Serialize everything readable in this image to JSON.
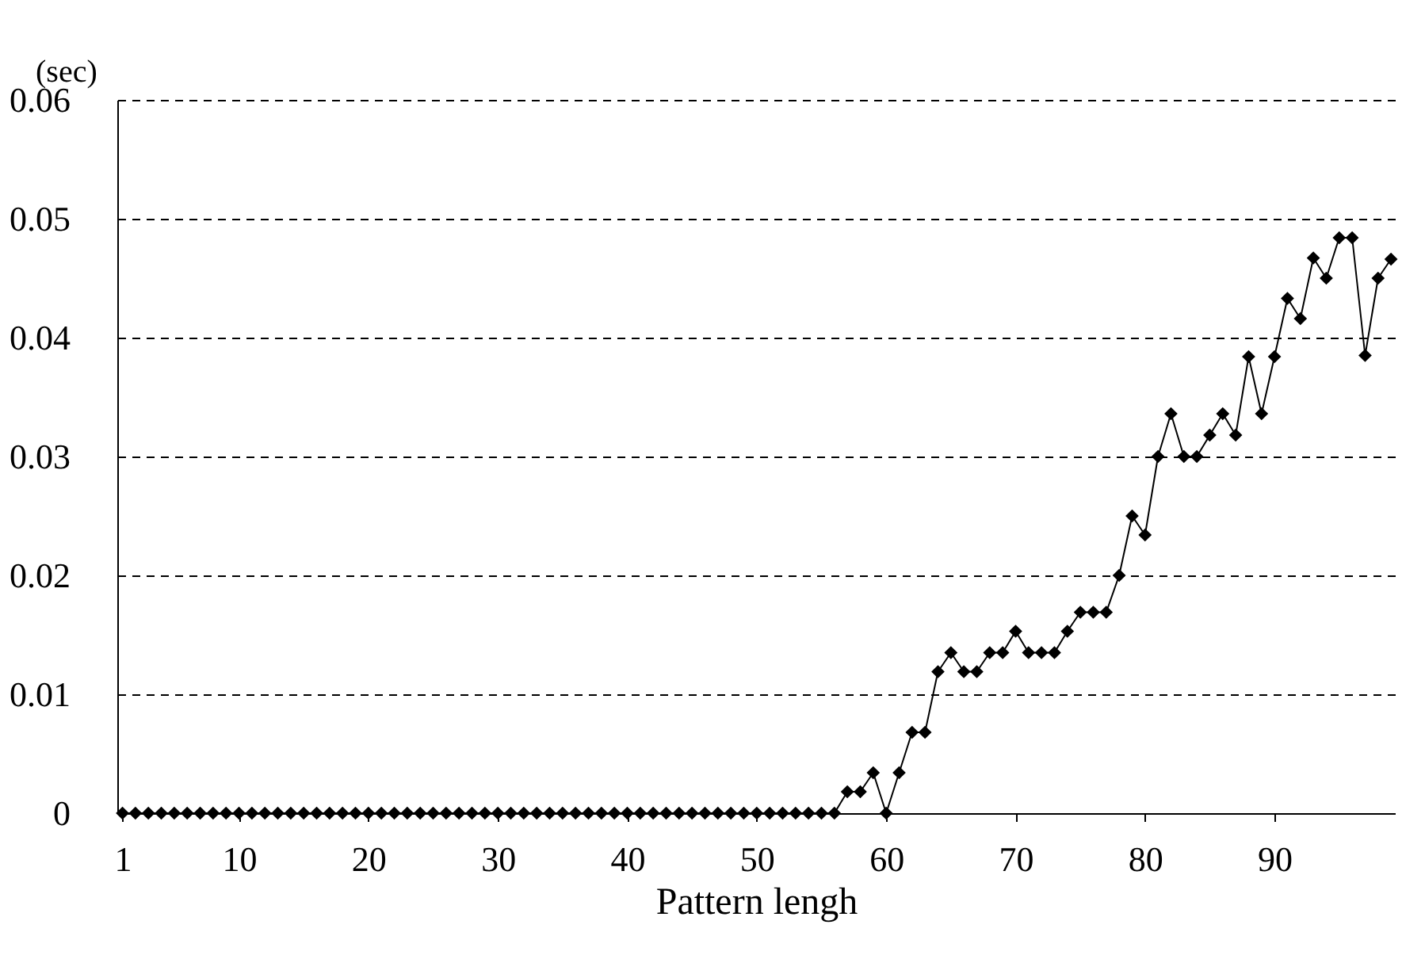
{
  "chart_data": {
    "type": "line",
    "xlabel": "Pattern lengh",
    "ylabel": "(sec)",
    "x": [
      1,
      2,
      3,
      4,
      5,
      6,
      7,
      8,
      9,
      10,
      11,
      12,
      13,
      14,
      15,
      16,
      17,
      18,
      19,
      20,
      21,
      22,
      23,
      24,
      25,
      26,
      27,
      28,
      29,
      30,
      31,
      32,
      33,
      34,
      35,
      36,
      37,
      38,
      39,
      40,
      41,
      42,
      43,
      44,
      45,
      46,
      47,
      48,
      49,
      50,
      51,
      52,
      53,
      54,
      55,
      56,
      57,
      58,
      59,
      60,
      61,
      62,
      63,
      64,
      65,
      66,
      67,
      68,
      69,
      70,
      71,
      72,
      73,
      74,
      75,
      76,
      77,
      78,
      79,
      80,
      81,
      82,
      83,
      84,
      85,
      86,
      87,
      88,
      89,
      90,
      91,
      92,
      93,
      94,
      95,
      96,
      97,
      98,
      99
    ],
    "series": [
      {
        "color": "#000000",
        "values": [
          0,
          0,
          0,
          0,
          0,
          0,
          0,
          0,
          0,
          0,
          0,
          0,
          0,
          0,
          0,
          0,
          0,
          0,
          0,
          0,
          0,
          0,
          0,
          0,
          0,
          0,
          0,
          0,
          0,
          0,
          0,
          0,
          0,
          0,
          0,
          0,
          0,
          0,
          0,
          0,
          0,
          0,
          0,
          0,
          0,
          0,
          0,
          0,
          0,
          0,
          0,
          0,
          0,
          0,
          0,
          0,
          0.0018,
          0.0018,
          0.0034,
          0,
          0.0034,
          0.0068,
          0.0068,
          0.0119,
          0.0135,
          0.0119,
          0.0119,
          0.0135,
          0.0135,
          0.0153,
          0.0135,
          0.0135,
          0.0135,
          0.0153,
          0.0169,
          0.0169,
          0.0169,
          0.02,
          0.025,
          0.0234,
          0.03,
          0.0336,
          0.03,
          0.03,
          0.0318,
          0.0336,
          0.0318,
          0.0384,
          0.0336,
          0.0384,
          0.0433,
          0.0416,
          0.0467,
          0.045,
          0.0484,
          0.0484,
          0.0385,
          0.045,
          0.0466
        ]
      }
    ],
    "xlim": [
      0.6,
      99.3
    ],
    "xticks": [
      1,
      10,
      20,
      30,
      40,
      50,
      60,
      70,
      80,
      90
    ],
    "ylim": [
      0,
      0.06
    ],
    "yticks": [
      0,
      0.01,
      0.02,
      0.03,
      0.04,
      0.05,
      0.06
    ],
    "grid": "y",
    "marker": "diamond",
    "line_style": "solid"
  }
}
